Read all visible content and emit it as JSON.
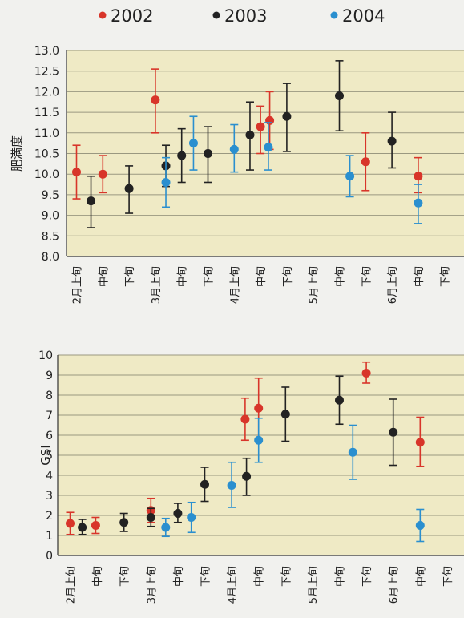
{
  "legend": [
    {
      "name": "2002",
      "color": "#d8352a"
    },
    {
      "name": "2003",
      "color": "#222222"
    },
    {
      "name": "2004",
      "color": "#2a8fcf"
    }
  ],
  "categories": [
    "2月上旬",
    "中旬",
    "下旬",
    "3月上旬",
    "中旬",
    "下旬",
    "4月上旬",
    "中旬",
    "下旬",
    "5月上旬",
    "中旬",
    "下旬",
    "6月上旬",
    "中旬",
    "下旬"
  ],
  "chart_data": [
    {
      "type": "scatter",
      "ylabel": "肥満度",
      "ylim": [
        8.0,
        13.0
      ],
      "yticks": [
        "8.0",
        "8.5",
        "9.0",
        "9.5",
        "10.0",
        "10.5",
        "11.0",
        "11.5",
        "12.0",
        "12.5",
        "13.0"
      ],
      "categories": [
        "2月上旬",
        "中旬",
        "下旬",
        "3月上旬",
        "中旬",
        "下旬",
        "4月上旬",
        "中旬",
        "下旬",
        "5月上旬",
        "中旬",
        "下旬",
        "6月上旬",
        "中旬",
        "下旬"
      ],
      "series": [
        {
          "name": "2002",
          "color": "#d8352a",
          "points": [
            {
              "x": 0,
              "y": 10.05,
              "low": 9.4,
              "high": 10.7
            },
            {
              "x": 1,
              "y": 10.0,
              "low": 9.55,
              "high": 10.45
            },
            {
              "x": 3,
              "y": 11.8,
              "low": 11.0,
              "high": 12.55
            },
            {
              "x": 7,
              "y": 11.15,
              "low": 10.5,
              "high": 11.65
            },
            {
              "x": 7.35,
              "y": 11.3,
              "low": 10.6,
              "high": 12.0
            },
            {
              "x": 11,
              "y": 10.3,
              "low": 9.6,
              "high": 11.0
            },
            {
              "x": 13,
              "y": 9.95,
              "low": 9.55,
              "high": 10.4
            }
          ]
        },
        {
          "name": "2003",
          "color": "#222222",
          "points": [
            {
              "x": 0.55,
              "y": 9.35,
              "low": 8.7,
              "high": 9.95
            },
            {
              "x": 2,
              "y": 9.65,
              "low": 9.05,
              "high": 10.2
            },
            {
              "x": 3.4,
              "y": 10.2,
              "low": 9.7,
              "high": 10.7
            },
            {
              "x": 4,
              "y": 10.45,
              "low": 9.8,
              "high": 11.1
            },
            {
              "x": 5,
              "y": 10.5,
              "low": 9.8,
              "high": 11.15
            },
            {
              "x": 6.6,
              "y": 10.95,
              "low": 10.1,
              "high": 11.75
            },
            {
              "x": 8,
              "y": 11.4,
              "low": 10.55,
              "high": 12.2
            },
            {
              "x": 10,
              "y": 11.9,
              "low": 11.05,
              "high": 12.75
            },
            {
              "x": 12,
              "y": 10.8,
              "low": 10.15,
              "high": 11.5
            }
          ]
        },
        {
          "name": "2004",
          "color": "#2a8fcf",
          "points": [
            {
              "x": 3.4,
              "y": 9.8,
              "low": 9.2,
              "high": 10.4
            },
            {
              "x": 4.45,
              "y": 10.75,
              "low": 10.1,
              "high": 11.4
            },
            {
              "x": 6.0,
              "y": 10.6,
              "low": 10.05,
              "high": 11.2
            },
            {
              "x": 7.3,
              "y": 10.65,
              "low": 10.1,
              "high": 11.25
            },
            {
              "x": 10.4,
              "y": 9.95,
              "low": 9.45,
              "high": 10.45
            },
            {
              "x": 13.0,
              "y": 9.3,
              "low": 8.8,
              "high": 9.75
            }
          ]
        }
      ]
    },
    {
      "type": "scatter",
      "ylabel": "GSI",
      "ylim": [
        0,
        10
      ],
      "yticks": [
        "0",
        "1",
        "2",
        "3",
        "4",
        "5",
        "6",
        "7",
        "8",
        "9",
        "10"
      ],
      "categories": [
        "2月上旬",
        "中旬",
        "下旬",
        "3月上旬",
        "中旬",
        "下旬",
        "4月上旬",
        "中旬",
        "下旬",
        "5月上旬",
        "中旬",
        "下旬",
        "6月上旬",
        "中旬",
        "下旬"
      ],
      "series": [
        {
          "name": "2002",
          "color": "#d8352a",
          "points": [
            {
              "x": 0,
              "y": 1.6,
              "low": 1.05,
              "high": 2.15
            },
            {
              "x": 0.95,
              "y": 1.5,
              "low": 1.1,
              "high": 1.9
            },
            {
              "x": 3,
              "y": 2.25,
              "low": 1.65,
              "high": 2.85
            },
            {
              "x": 6.5,
              "y": 6.8,
              "low": 5.75,
              "high": 7.85
            },
            {
              "x": 7.0,
              "y": 7.35,
              "low": 5.85,
              "high": 8.85
            },
            {
              "x": 11.0,
              "y": 9.1,
              "low": 8.6,
              "high": 9.65
            },
            {
              "x": 13.0,
              "y": 5.65,
              "low": 4.45,
              "high": 6.9
            }
          ]
        },
        {
          "name": "2003",
          "color": "#222222",
          "points": [
            {
              "x": 0.45,
              "y": 1.4,
              "low": 1.05,
              "high": 1.8
            },
            {
              "x": 2.0,
              "y": 1.65,
              "low": 1.2,
              "high": 2.1
            },
            {
              "x": 3.0,
              "y": 1.9,
              "low": 1.45,
              "high": 2.35
            },
            {
              "x": 4.0,
              "y": 2.1,
              "low": 1.65,
              "high": 2.6
            },
            {
              "x": 5.0,
              "y": 3.55,
              "low": 2.7,
              "high": 4.4
            },
            {
              "x": 6.55,
              "y": 3.95,
              "low": 3.0,
              "high": 4.85
            },
            {
              "x": 8.0,
              "y": 7.05,
              "low": 5.7,
              "high": 8.4
            },
            {
              "x": 10.0,
              "y": 7.75,
              "low": 6.55,
              "high": 8.95
            },
            {
              "x": 12.0,
              "y": 6.15,
              "low": 4.5,
              "high": 7.8
            }
          ]
        },
        {
          "name": "2004",
          "color": "#2a8fcf",
          "points": [
            {
              "x": 3.55,
              "y": 1.4,
              "low": 0.95,
              "high": 1.85
            },
            {
              "x": 4.5,
              "y": 1.9,
              "low": 1.15,
              "high": 2.65
            },
            {
              "x": 6.0,
              "y": 3.5,
              "low": 2.4,
              "high": 4.65
            },
            {
              "x": 7.0,
              "y": 5.75,
              "low": 4.65,
              "high": 6.85
            },
            {
              "x": 10.5,
              "y": 5.15,
              "low": 3.8,
              "high": 6.5
            },
            {
              "x": 13.0,
              "y": 1.5,
              "low": 0.7,
              "high": 2.3
            }
          ]
        }
      ]
    }
  ]
}
